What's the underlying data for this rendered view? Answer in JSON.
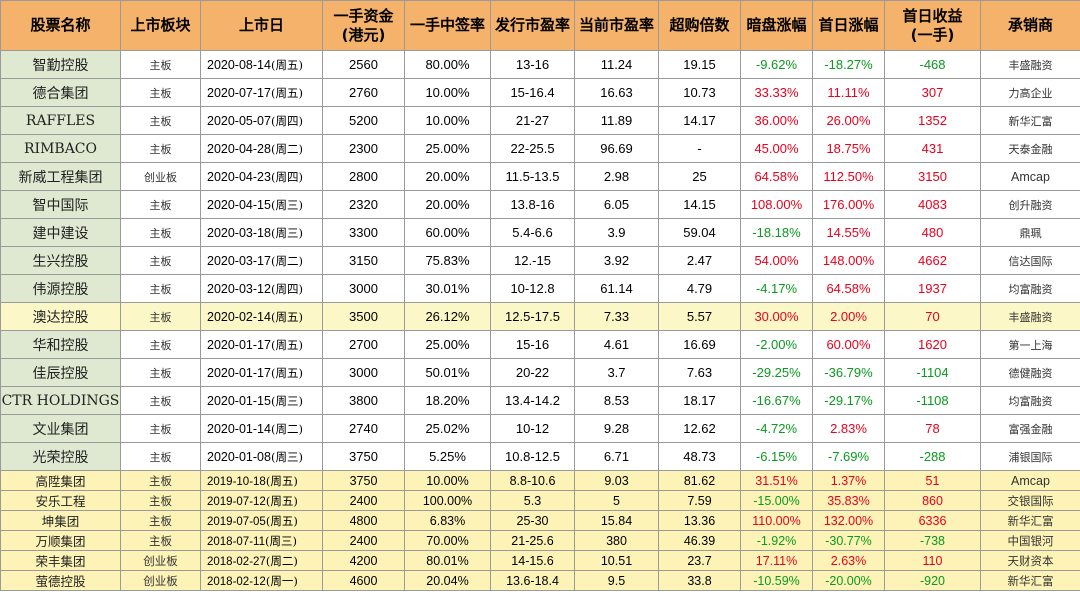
{
  "headers": [
    "股票名称",
    "上市板块",
    "上市日",
    "一手资金\n(港元)",
    "一手中签率",
    "发行市盈率",
    "当前市盈率",
    "超购倍数",
    "暗盘涨幅",
    "首日涨幅",
    "首日收益\n(一手)",
    "承销商"
  ],
  "rows": [
    {
      "name": "智勤控股",
      "board": "主板",
      "date": "2020-08-14",
      "weekday": "(周五)",
      "lot_cost": "2560",
      "win_rate": "80.00%",
      "ipo_pe": "13-16",
      "cur_pe": "11.24",
      "oversub": "19.15",
      "grey": "-9.62%",
      "first_day": "-18.27%",
      "profit": "-468",
      "underwriter": "丰盛融资"
    },
    {
      "name": "德合集团",
      "board": "主板",
      "date": "2020-07-17",
      "weekday": "(周五)",
      "lot_cost": "2760",
      "win_rate": "10.00%",
      "ipo_pe": "15-16.4",
      "cur_pe": "16.63",
      "oversub": "10.73",
      "grey": "33.33%",
      "first_day": "11.11%",
      "profit": "307",
      "underwriter": "力高企业"
    },
    {
      "name": "RAFFLES",
      "board": "主板",
      "date": "2020-05-07",
      "weekday": "(周四)",
      "lot_cost": "5200",
      "win_rate": "10.00%",
      "ipo_pe": "21-27",
      "cur_pe": "11.89",
      "oversub": "14.17",
      "grey": "36.00%",
      "first_day": "26.00%",
      "profit": "1352",
      "underwriter": "新华汇富"
    },
    {
      "name": "RIMBACO",
      "board": "主板",
      "date": "2020-04-28",
      "weekday": "(周二)",
      "lot_cost": "2300",
      "win_rate": "25.00%",
      "ipo_pe": "22-25.5",
      "cur_pe": "96.69",
      "oversub": "-",
      "grey": "45.00%",
      "first_day": "18.75%",
      "profit": "431",
      "underwriter": "天泰金融"
    },
    {
      "name": "新威工程集团",
      "board": "创业板",
      "date": "2020-04-23",
      "weekday": "(周四)",
      "lot_cost": "2800",
      "win_rate": "20.00%",
      "ipo_pe": "11.5-13.5",
      "cur_pe": "2.98",
      "oversub": "25",
      "grey": "64.58%",
      "first_day": "112.50%",
      "profit": "3150",
      "underwriter": "Amcap"
    },
    {
      "name": "智中国际",
      "board": "主板",
      "date": "2020-04-15",
      "weekday": "(周三)",
      "lot_cost": "2320",
      "win_rate": "20.00%",
      "ipo_pe": "13.8-16",
      "cur_pe": "6.05",
      "oversub": "14.15",
      "grey": "108.00%",
      "first_day": "176.00%",
      "profit": "4083",
      "underwriter": "创升融资"
    },
    {
      "name": "建中建设",
      "board": "主板",
      "date": "2020-03-18",
      "weekday": "(周三)",
      "lot_cost": "3300",
      "win_rate": "60.00%",
      "ipo_pe": "5.4-6.6",
      "cur_pe": "3.9",
      "oversub": "59.04",
      "grey": "-18.18%",
      "first_day": "14.55%",
      "profit": "480",
      "underwriter": "鼎珮"
    },
    {
      "name": "生兴控股",
      "board": "主板",
      "date": "2020-03-17",
      "weekday": "(周二)",
      "lot_cost": "3150",
      "win_rate": "75.83%",
      "ipo_pe": "12.-15",
      "cur_pe": "3.92",
      "oversub": "2.47",
      "grey": "54.00%",
      "first_day": "148.00%",
      "profit": "4662",
      "underwriter": "信达国际"
    },
    {
      "name": "伟源控股",
      "board": "主板",
      "date": "2020-03-12",
      "weekday": "(周四)",
      "lot_cost": "3000",
      "win_rate": "30.01%",
      "ipo_pe": "10-12.8",
      "cur_pe": "61.14",
      "oversub": "4.79",
      "grey": "-4.17%",
      "first_day": "64.58%",
      "profit": "1937",
      "underwriter": "均富融资"
    },
    {
      "name": "澳达控股",
      "board": "主板",
      "date": "2020-02-14",
      "weekday": "(周五)",
      "lot_cost": "3500",
      "win_rate": "26.12%",
      "ipo_pe": "12.5-17.5",
      "cur_pe": "7.33",
      "oversub": "5.57",
      "grey": "30.00%",
      "first_day": "2.00%",
      "profit": "70",
      "underwriter": "丰盛融资"
    },
    {
      "name": "华和控股",
      "board": "主板",
      "date": "2020-01-17",
      "weekday": "(周五)",
      "lot_cost": "2700",
      "win_rate": "25.00%",
      "ipo_pe": "15-16",
      "cur_pe": "4.61",
      "oversub": "16.69",
      "grey": "-2.00%",
      "first_day": "60.00%",
      "profit": "1620",
      "underwriter": "第一上海"
    },
    {
      "name": "佳辰控股",
      "board": "主板",
      "date": "2020-01-17",
      "weekday": "(周五)",
      "lot_cost": "3000",
      "win_rate": "50.01%",
      "ipo_pe": "20-22",
      "cur_pe": "3.7",
      "oversub": "7.63",
      "grey": "-29.25%",
      "first_day": "-36.79%",
      "profit": "-1104",
      "underwriter": "德健融资"
    },
    {
      "name": "CTR HOLDINGS",
      "board": "主板",
      "date": "2020-01-15",
      "weekday": "(周三)",
      "lot_cost": "3800",
      "win_rate": "18.20%",
      "ipo_pe": "13.4-14.2",
      "cur_pe": "8.53",
      "oversub": "18.17",
      "grey": "-16.67%",
      "first_day": "-29.17%",
      "profit": "-1108",
      "underwriter": "均富融资"
    },
    {
      "name": "文业集团",
      "board": "主板",
      "date": "2020-01-14",
      "weekday": "(周二)",
      "lot_cost": "2740",
      "win_rate": "25.02%",
      "ipo_pe": "10-12",
      "cur_pe": "9.28",
      "oversub": "12.62",
      "grey": "-4.72%",
      "first_day": "2.83%",
      "profit": "78",
      "underwriter": "富强金融"
    },
    {
      "name": "光荣控股",
      "board": "主板",
      "date": "2020-01-08",
      "weekday": "(周三)",
      "lot_cost": "3750",
      "win_rate": "5.25%",
      "ipo_pe": "10.8-12.5",
      "cur_pe": "6.71",
      "oversub": "48.73",
      "grey": "-6.15%",
      "first_day": "-7.69%",
      "profit": "-288",
      "underwriter": "浦银国际"
    },
    {
      "name": "高陞集团",
      "board": "主板",
      "date": "2019-10-18",
      "weekday": "(周五)",
      "lot_cost": "3750",
      "win_rate": "10.00%",
      "ipo_pe": "8.8-10.6",
      "cur_pe": "9.03",
      "oversub": "81.62",
      "grey": "31.51%",
      "first_day": "1.37%",
      "profit": "51",
      "underwriter": "Amcap"
    },
    {
      "name": "安乐工程",
      "board": "主板",
      "date": "2019-07-12",
      "weekday": "(周五)",
      "lot_cost": "2400",
      "win_rate": "100.00%",
      "ipo_pe": "5.3",
      "cur_pe": "5",
      "oversub": "7.59",
      "grey": "-15.00%",
      "first_day": "35.83%",
      "profit": "860",
      "underwriter": "交银国际"
    },
    {
      "name": "坤集团",
      "board": "主板",
      "date": "2019-07-05",
      "weekday": "(周五)",
      "lot_cost": "4800",
      "win_rate": "6.83%",
      "ipo_pe": "25-30",
      "cur_pe": "15.84",
      "oversub": "13.36",
      "grey": "110.00%",
      "first_day": "132.00%",
      "profit": "6336",
      "underwriter": "新华汇富"
    },
    {
      "name": "万顺集团",
      "board": "主板",
      "date": "2018-07-11",
      "weekday": "(周三)",
      "lot_cost": "2400",
      "win_rate": "70.00%",
      "ipo_pe": "21-25.6",
      "cur_pe": "380",
      "oversub": "46.39",
      "grey": "-1.92%",
      "first_day": "-30.77%",
      "profit": "-738",
      "underwriter": "中国银河"
    },
    {
      "name": "荣丰集团",
      "board": "创业板",
      "date": "2018-02-27",
      "weekday": "(周二)",
      "lot_cost": "4200",
      "win_rate": "80.01%",
      "ipo_pe": "14-15.6",
      "cur_pe": "10.51",
      "oversub": "23.7",
      "grey": "17.11%",
      "first_day": "2.63%",
      "profit": "110",
      "underwriter": "天财资本"
    },
    {
      "name": "萤德控股",
      "board": "创业板",
      "date": "2018-02-12",
      "weekday": "(周一)",
      "lot_cost": "4600",
      "win_rate": "20.04%",
      "ipo_pe": "13.6-18.4",
      "cur_pe": "9.5",
      "oversub": "33.8",
      "grey": "-10.59%",
      "first_day": "-20.00%",
      "profit": "-920",
      "underwriter": "新华汇富"
    }
  ],
  "colors": {
    "header_bg": "#f5b26b",
    "name_bg": "#dfe9d2",
    "highlight_bg": "#fbf7c7",
    "positive": "#e8001c",
    "negative": "#0a9a1e"
  }
}
